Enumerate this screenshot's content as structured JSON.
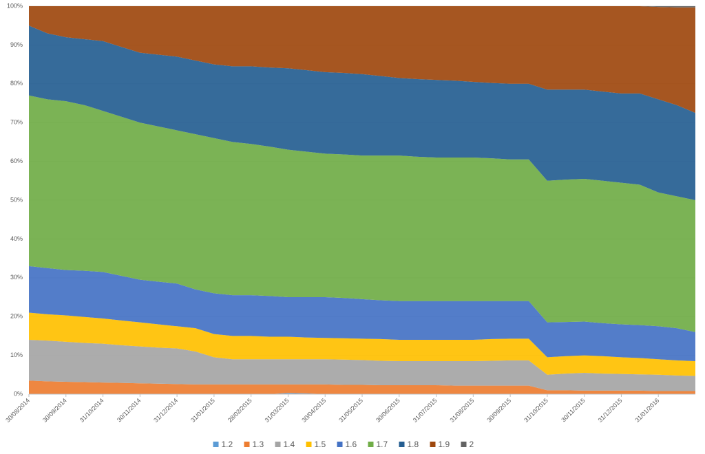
{
  "chart_data": {
    "type": "stacked_area_percent",
    "categories": [
      "30/08/2014",
      null,
      "30/09/2014",
      null,
      "31/10/2014",
      null,
      "30/11/2014",
      null,
      "31/12/2014",
      null,
      "31/01/2015",
      null,
      "28/02/2015",
      null,
      "31/03/2015",
      null,
      "30/04/2015",
      null,
      "31/05/2015",
      null,
      "30/06/2015",
      null,
      "31/07/2015",
      null,
      "31/08/2015",
      null,
      "30/09/2015",
      null,
      "31/10/2015",
      null,
      "30/11/2015",
      null,
      "31/12/2015",
      null,
      "31/01/2016",
      null,
      null
    ],
    "series": [
      {
        "name": "1.2",
        "color": "#5b9bd5",
        "values": [
          0,
          0,
          0,
          0,
          0,
          0,
          0,
          0,
          0,
          0,
          0,
          0,
          0,
          0,
          0.3,
          0.2,
          0,
          0,
          0,
          0,
          0,
          0,
          0,
          0,
          0,
          0,
          0,
          0,
          0,
          0,
          0,
          0,
          0,
          0,
          0,
          0,
          0
        ]
      },
      {
        "name": "1.3",
        "color": "#ed7d31",
        "values": [
          3.5,
          3.3,
          3.2,
          3.1,
          3,
          2.9,
          2.8,
          2.7,
          2.6,
          2.5,
          2.5,
          2.5,
          2.5,
          2.5,
          2.2,
          2.3,
          2.5,
          2.4,
          2.4,
          2.3,
          2.3,
          2.3,
          2.3,
          2.2,
          2.2,
          2.2,
          2.2,
          2.2,
          1,
          1,
          0.9,
          0.9,
          0.9,
          0.9,
          0.8,
          0.8,
          0.8
        ]
      },
      {
        "name": "1.4",
        "color": "#a5a5a5",
        "values": [
          10.5,
          10.5,
          10.3,
          10.1,
          10,
          9.7,
          9.5,
          9.3,
          9.2,
          8.5,
          7,
          6.5,
          6.5,
          6.5,
          6.5,
          6.5,
          6.5,
          6.5,
          6.4,
          6.3,
          6.2,
          6.2,
          6.2,
          6.3,
          6.3,
          6.4,
          6.5,
          6.5,
          4,
          4.3,
          4.6,
          4.4,
          4.3,
          4.2,
          4.2,
          4,
          3.9
        ]
      },
      {
        "name": "1.5",
        "color": "#ffc000",
        "values": [
          7,
          6.8,
          6.8,
          6.7,
          6.5,
          6.4,
          6.2,
          6,
          5.7,
          6,
          6,
          6,
          6,
          5.8,
          5.8,
          5.6,
          5.5,
          5.5,
          5.5,
          5.6,
          5.5,
          5.5,
          5.5,
          5.5,
          5.5,
          5.6,
          5.6,
          5.6,
          4.5,
          4.5,
          4.5,
          4.5,
          4.3,
          4.2,
          4,
          3.9,
          3.8
        ]
      },
      {
        "name": "1.6",
        "color": "#4472c4",
        "values": [
          12,
          11.9,
          11.7,
          11.9,
          12,
          11.5,
          11,
          11,
          11,
          10,
          10.5,
          10.5,
          10.5,
          10.5,
          10.2,
          10.4,
          10.5,
          10.4,
          10.2,
          10,
          10,
          10,
          10,
          10,
          10,
          9.8,
          9.7,
          9.7,
          9,
          8.8,
          8.7,
          8.5,
          8.5,
          8.5,
          8.5,
          8.3,
          7.5
        ]
      },
      {
        "name": "1.7",
        "color": "#70ad47",
        "values": [
          44,
          43.5,
          43.5,
          42.7,
          41.5,
          41,
          40.5,
          40,
          39.5,
          40,
          40,
          39.5,
          39,
          38.5,
          38,
          37.5,
          37,
          37,
          37,
          37.3,
          37.5,
          37.2,
          37,
          37,
          37,
          36.8,
          36.5,
          36.5,
          36.5,
          36.7,
          36.8,
          36.7,
          36.5,
          36.2,
          34.5,
          34,
          34
        ]
      },
      {
        "name": "1.8",
        "color": "#255e91",
        "values": [
          18,
          17,
          16.5,
          17,
          18,
          18,
          18,
          18.5,
          19,
          19,
          19,
          19.5,
          20,
          20.4,
          21,
          21,
          21,
          21,
          21,
          20.5,
          20,
          20,
          20,
          19.8,
          19.5,
          19.4,
          19.5,
          19.5,
          23.5,
          23.2,
          23,
          23,
          23,
          23.5,
          24,
          23.5,
          22.5
        ]
      },
      {
        "name": "1.9",
        "color": "#9e480e",
        "values": [
          5,
          7,
          8,
          8.5,
          9,
          10.5,
          12,
          12.5,
          13,
          14,
          15,
          15.5,
          15.5,
          15.8,
          16,
          16.5,
          17,
          17.2,
          17.5,
          18,
          18.5,
          18.8,
          19,
          19.2,
          19.5,
          19.8,
          20,
          20,
          21.5,
          21.5,
          21.5,
          22,
          22.5,
          22.5,
          23.8,
          25.2,
          27.2
        ]
      },
      {
        "name": "2",
        "color": "#636363",
        "values": [
          0,
          0,
          0,
          0,
          0,
          0,
          0,
          0,
          0,
          0,
          0,
          0,
          0,
          0,
          0,
          0,
          0,
          0,
          0,
          0,
          0,
          0,
          0,
          0,
          0,
          0,
          0,
          0,
          0,
          0,
          0,
          0,
          0,
          0,
          0.2,
          0.3,
          0.3
        ]
      }
    ],
    "ylim": [
      0,
      100
    ],
    "yticks": [
      {
        "value": 0,
        "label": "0%"
      },
      {
        "value": 10,
        "label": "10%"
      },
      {
        "value": 20,
        "label": "20%"
      },
      {
        "value": 30,
        "label": "30%"
      },
      {
        "value": 40,
        "label": "40%"
      },
      {
        "value": 50,
        "label": "50%"
      },
      {
        "value": 60,
        "label": "60%"
      },
      {
        "value": 70,
        "label": "70%"
      },
      {
        "value": 80,
        "label": "80%"
      },
      {
        "value": 90,
        "label": "90%"
      },
      {
        "value": 100,
        "label": "100%"
      }
    ],
    "grid": true,
    "legend": "bottom"
  }
}
